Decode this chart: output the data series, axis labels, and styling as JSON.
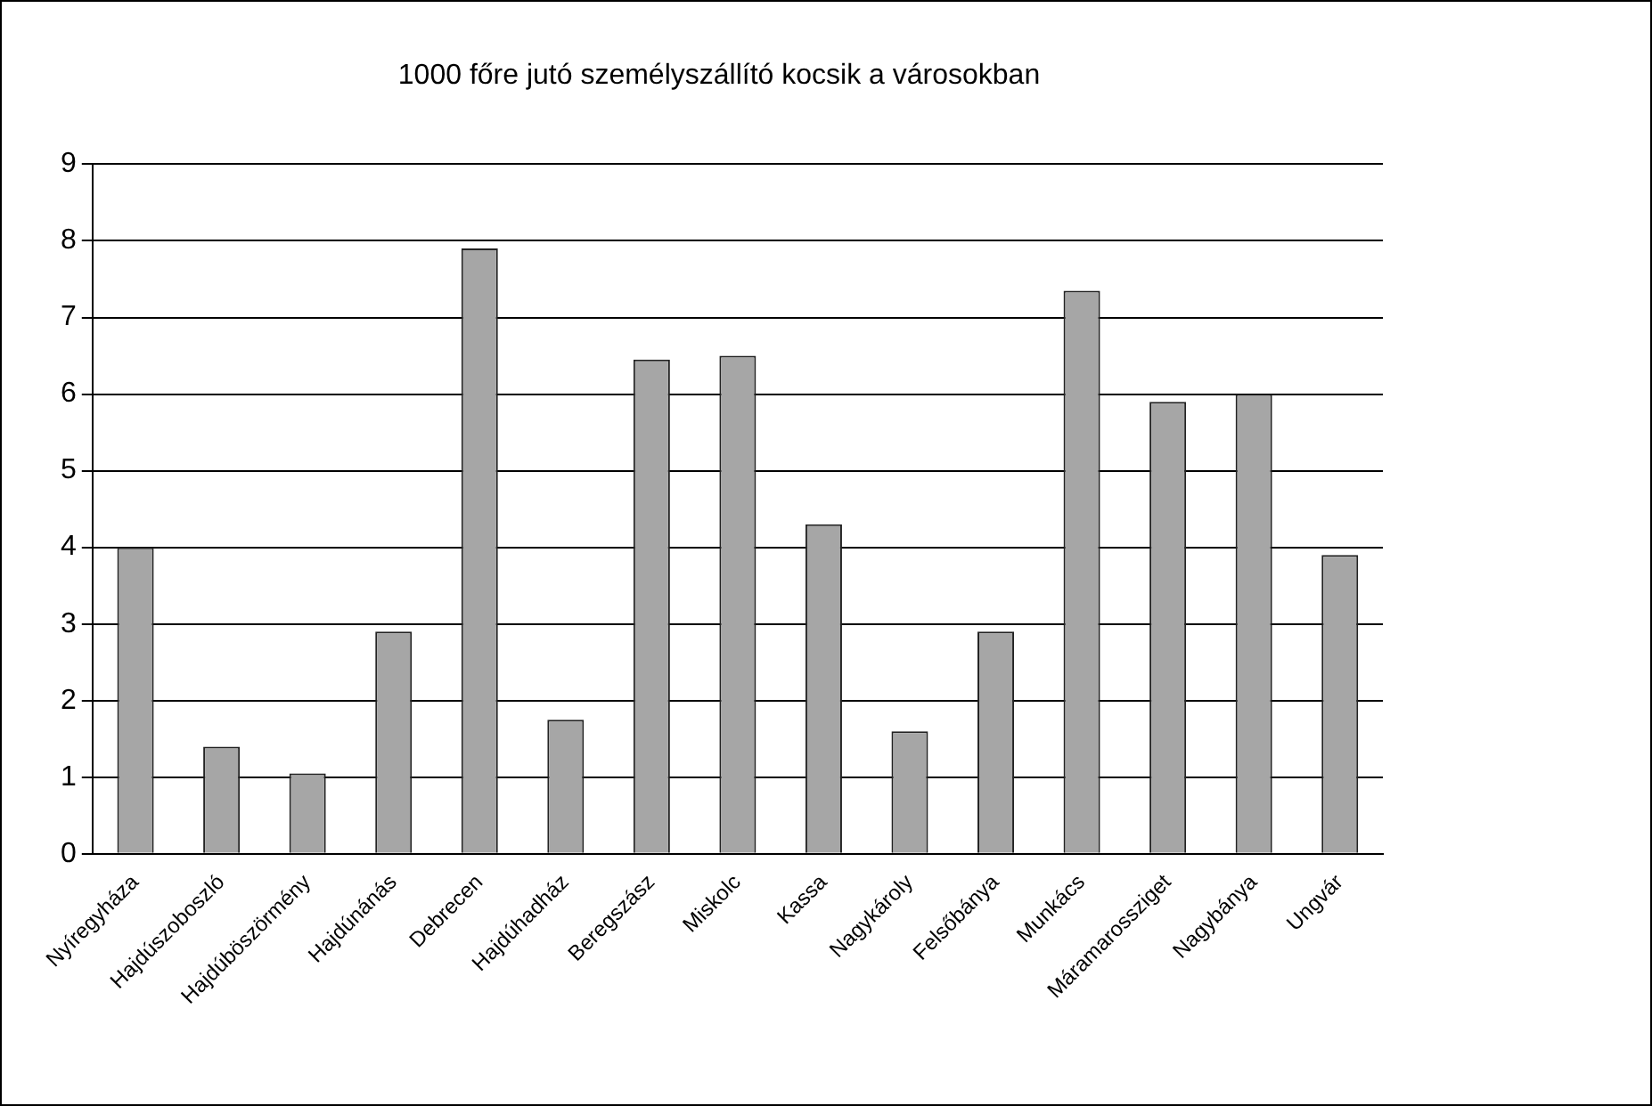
{
  "chart_data": {
    "type": "bar",
    "title": "1000 főre jutó személyszállító kocsik a városokban",
    "categories": [
      "Nyíregyháza",
      "Hajdúszoboszló",
      "Hajdúböszörmény",
      "Hajdúnánás",
      "Debrecen",
      "Hajdúhadház",
      "Beregszász",
      "Miskolc",
      "Kassa",
      "Nagykároly",
      "Felsőbánya",
      "Munkács",
      "Máramarossziget",
      "Nagybánya",
      "Ungvár"
    ],
    "values": [
      4.0,
      1.4,
      1.05,
      2.9,
      7.9,
      1.75,
      6.45,
      6.5,
      4.3,
      1.6,
      2.9,
      7.35,
      5.9,
      6.0,
      3.9
    ],
    "color": "#a6a6a6",
    "ylim": [
      0,
      9
    ],
    "yticks": [
      0,
      1,
      2,
      3,
      4,
      5,
      6,
      7,
      8,
      9
    ],
    "grid": "y",
    "legend": false
  }
}
